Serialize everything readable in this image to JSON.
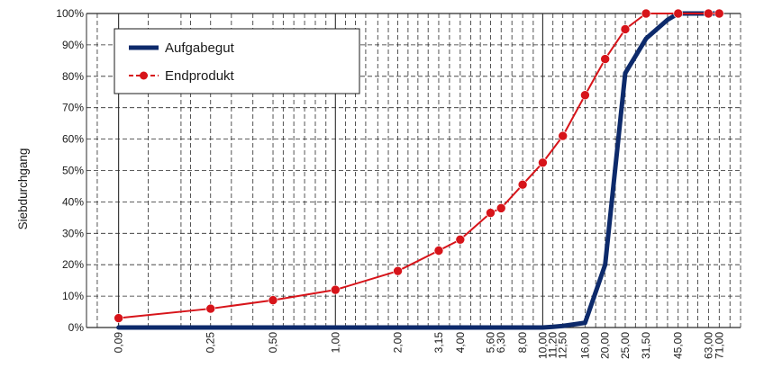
{
  "chart_data": {
    "type": "line",
    "ylabel": "Siebdurchgang",
    "xscale": "log",
    "grid": true,
    "legend_position": "top-left",
    "xlim": [
      0.063,
      90
    ],
    "ylim": [
      0,
      100
    ],
    "y_ticks": [
      0,
      10,
      20,
      30,
      40,
      50,
      60,
      70,
      80,
      90,
      100
    ],
    "y_tick_labels": [
      "0%",
      "10%",
      "20%",
      "30%",
      "40%",
      "50%",
      "60%",
      "70%",
      "80%",
      "90%",
      "100%"
    ],
    "x_ticks": [
      0.09,
      0.25,
      0.5,
      1.0,
      2.0,
      3.15,
      4.0,
      5.6,
      6.3,
      8.0,
      10.0,
      11.2,
      12.5,
      16.0,
      20.0,
      25.0,
      31.5,
      45.0,
      63.0,
      71.0
    ],
    "x_tick_labels": [
      "0,09",
      "0,25",
      "0,50",
      "1,00",
      "2,00",
      "3,15",
      "4,00",
      "5,60",
      "6,30",
      "8,00",
      "10,00",
      "11,20",
      "12,50",
      "16,00",
      "20,00",
      "25,00",
      "31,50",
      "45,00",
      "63,00",
      "71,00"
    ],
    "x_grid": [
      0.063,
      0.071,
      0.09,
      0.125,
      0.18,
      0.2,
      0.25,
      0.315,
      0.4,
      0.5,
      0.56,
      0.63,
      0.71,
      0.8,
      0.9,
      1.0,
      1.12,
      1.25,
      1.4,
      1.6,
      1.8,
      2.0,
      2.24,
      2.5,
      2.8,
      3.15,
      3.55,
      4.0,
      4.5,
      5.0,
      5.6,
      6.3,
      7.1,
      8.0,
      9.0,
      10.0,
      11.2,
      12.5,
      14.0,
      16.0,
      18.0,
      20.0,
      22.4,
      25.0,
      28.0,
      31.5,
      35.5,
      40.0,
      45.0,
      50.0,
      56.0,
      63.0,
      71.0,
      80.0,
      90.0
    ],
    "x_grid_major": [
      0.09,
      1.0,
      10.0
    ],
    "series": [
      {
        "name": "Aufgabegut",
        "color": "#0d2a6b",
        "marker": "none",
        "points": [
          [
            0.09,
            0
          ],
          [
            0.25,
            0
          ],
          [
            0.5,
            0
          ],
          [
            1.0,
            0
          ],
          [
            2.0,
            0
          ],
          [
            3.15,
            0
          ],
          [
            4.0,
            0
          ],
          [
            5.6,
            0
          ],
          [
            6.3,
            0
          ],
          [
            8.0,
            0
          ],
          [
            10.0,
            0
          ],
          [
            11.2,
            0.2
          ],
          [
            12.5,
            0.5
          ],
          [
            16.0,
            1.5
          ],
          [
            20.0,
            20
          ],
          [
            25.0,
            81
          ],
          [
            31.5,
            92
          ],
          [
            40.0,
            98
          ],
          [
            45.0,
            100
          ],
          [
            63.0,
            100
          ],
          [
            71.0,
            100
          ]
        ]
      },
      {
        "name": "Endprodukt",
        "color": "#d7141a",
        "marker": "circle",
        "points": [
          [
            0.09,
            3
          ],
          [
            0.25,
            6
          ],
          [
            0.5,
            8.7
          ],
          [
            1.0,
            12
          ],
          [
            2.0,
            18
          ],
          [
            3.15,
            24.5
          ],
          [
            4.0,
            28
          ],
          [
            5.6,
            36.5
          ],
          [
            6.3,
            38
          ],
          [
            8.0,
            45.5
          ],
          [
            10.0,
            52.5
          ],
          [
            12.5,
            61
          ],
          [
            16.0,
            74
          ],
          [
            20.0,
            85.5
          ],
          [
            25.0,
            95
          ],
          [
            31.5,
            100
          ],
          [
            45.0,
            100
          ],
          [
            63.0,
            100
          ],
          [
            71.0,
            100
          ]
        ]
      }
    ]
  }
}
